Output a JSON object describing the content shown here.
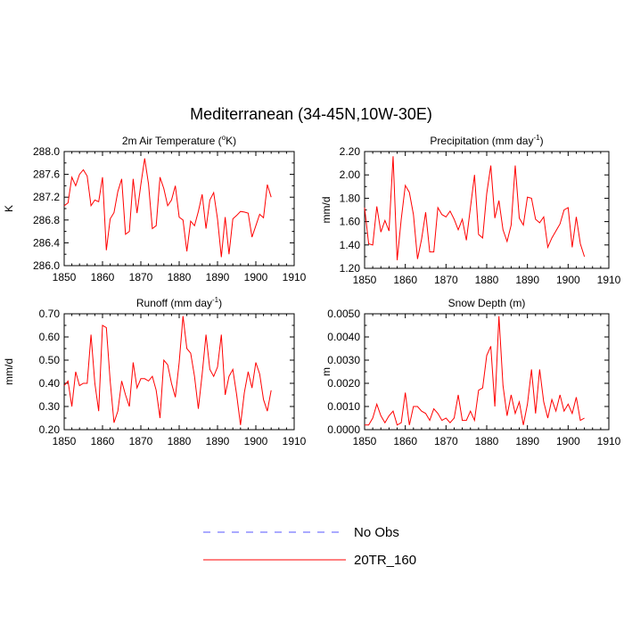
{
  "title": "Mediterranean (34-45N,10W-30E)",
  "legend": [
    {
      "label": "No Obs",
      "color": "#5555ff",
      "style": "dashed"
    },
    {
      "label": "20TR_160",
      "color": "#ff0000",
      "style": "solid"
    }
  ],
  "chart_data": [
    {
      "type": "line",
      "title_prefix": "2m Air Temperature (",
      "title_sup": "o",
      "title_suffix": "K)",
      "ylabel": "K",
      "xlim": [
        1850,
        1910
      ],
      "ylim": [
        286.0,
        288.0
      ],
      "xticks": [
        1850,
        1860,
        1870,
        1880,
        1890,
        1900,
        1910
      ],
      "yticks": [
        "286.0",
        "286.4",
        "286.8",
        "287.2",
        "287.6",
        "288.0"
      ],
      "series": [
        {
          "name": "20TR_160",
          "color": "#ff0000",
          "x": [
            1850,
            1851,
            1852,
            1853,
            1854,
            1855,
            1856,
            1857,
            1858,
            1859,
            1860,
            1861,
            1862,
            1863,
            1864,
            1865,
            1866,
            1867,
            1868,
            1869,
            1870,
            1871,
            1872,
            1873,
            1874,
            1875,
            1876,
            1877,
            1878,
            1879,
            1880,
            1881,
            1882,
            1883,
            1884,
            1885,
            1886,
            1887,
            1888,
            1889,
            1890,
            1891,
            1892,
            1893,
            1894,
            1895,
            1896,
            1897,
            1898,
            1899,
            1900,
            1901,
            1902,
            1903,
            1904
          ],
          "values": [
            287.05,
            287.1,
            287.55,
            287.4,
            287.6,
            287.68,
            287.57,
            287.05,
            287.15,
            287.12,
            287.55,
            286.27,
            286.82,
            286.93,
            287.3,
            287.52,
            286.55,
            286.6,
            287.52,
            286.92,
            287.42,
            287.88,
            287.43,
            286.65,
            286.7,
            287.55,
            287.35,
            287.05,
            287.15,
            287.4,
            286.85,
            286.8,
            286.25,
            286.78,
            286.7,
            286.95,
            287.25,
            286.65,
            287.15,
            287.28,
            286.82,
            286.15,
            286.85,
            286.2,
            286.82,
            286.88,
            286.95,
            286.94,
            286.92,
            286.5,
            286.7,
            286.9,
            286.84,
            287.42,
            287.2
          ]
        }
      ]
    },
    {
      "type": "line",
      "title_prefix": "Precipitation (mm day",
      "title_sup": "-1",
      "title_suffix": ")",
      "ylabel": "mm/d",
      "xlim": [
        1850,
        1910
      ],
      "ylim": [
        1.2,
        2.2
      ],
      "xticks": [
        1850,
        1860,
        1870,
        1880,
        1890,
        1900,
        1910
      ],
      "yticks": [
        "1.20",
        "1.40",
        "1.60",
        "1.80",
        "2.00",
        "2.20"
      ],
      "series": [
        {
          "name": "20TR_160",
          "color": "#ff0000",
          "x": [
            1850,
            1851,
            1852,
            1853,
            1854,
            1855,
            1856,
            1857,
            1858,
            1859,
            1860,
            1861,
            1862,
            1863,
            1864,
            1865,
            1866,
            1867,
            1868,
            1869,
            1870,
            1871,
            1872,
            1873,
            1874,
            1875,
            1876,
            1877,
            1878,
            1879,
            1880,
            1881,
            1882,
            1883,
            1884,
            1885,
            1886,
            1887,
            1888,
            1889,
            1890,
            1891,
            1892,
            1893,
            1894,
            1895,
            1896,
            1897,
            1898,
            1899,
            1900,
            1901,
            1902,
            1903,
            1904
          ],
          "values": [
            1.72,
            1.41,
            1.4,
            1.73,
            1.51,
            1.61,
            1.52,
            2.16,
            1.27,
            1.62,
            1.91,
            1.85,
            1.66,
            1.28,
            1.45,
            1.68,
            1.34,
            1.34,
            1.72,
            1.66,
            1.64,
            1.69,
            1.62,
            1.53,
            1.62,
            1.44,
            1.72,
            2.0,
            1.49,
            1.46,
            1.84,
            2.08,
            1.63,
            1.78,
            1.53,
            1.43,
            1.57,
            2.08,
            1.63,
            1.57,
            1.81,
            1.8,
            1.62,
            1.59,
            1.64,
            1.38,
            1.46,
            1.52,
            1.58,
            1.7,
            1.72,
            1.38,
            1.64,
            1.41,
            1.3
          ]
        }
      ]
    },
    {
      "type": "line",
      "title_prefix": "Runoff (mm day",
      "title_sup": "-1",
      "title_suffix": ")",
      "ylabel": "mm/d",
      "xlim": [
        1850,
        1910
      ],
      "ylim": [
        0.2,
        0.7
      ],
      "xticks": [
        1850,
        1860,
        1870,
        1880,
        1890,
        1900,
        1910
      ],
      "yticks": [
        "0.20",
        "0.30",
        "0.40",
        "0.50",
        "0.60",
        "0.70"
      ],
      "series": [
        {
          "name": "20TR_160",
          "color": "#ff0000",
          "x": [
            1850,
            1851,
            1852,
            1853,
            1854,
            1855,
            1856,
            1857,
            1858,
            1859,
            1860,
            1861,
            1862,
            1863,
            1864,
            1865,
            1866,
            1867,
            1868,
            1869,
            1870,
            1871,
            1872,
            1873,
            1874,
            1875,
            1876,
            1877,
            1878,
            1879,
            1880,
            1881,
            1882,
            1883,
            1884,
            1885,
            1886,
            1887,
            1888,
            1889,
            1890,
            1891,
            1892,
            1893,
            1894,
            1895,
            1896,
            1897,
            1898,
            1899,
            1900,
            1901,
            1902,
            1903,
            1904
          ],
          "values": [
            0.39,
            0.41,
            0.3,
            0.45,
            0.39,
            0.4,
            0.4,
            0.61,
            0.4,
            0.28,
            0.65,
            0.64,
            0.41,
            0.23,
            0.28,
            0.41,
            0.35,
            0.3,
            0.49,
            0.38,
            0.42,
            0.42,
            0.41,
            0.43,
            0.37,
            0.25,
            0.5,
            0.48,
            0.4,
            0.34,
            0.49,
            0.69,
            0.55,
            0.53,
            0.43,
            0.29,
            0.44,
            0.61,
            0.46,
            0.43,
            0.47,
            0.61,
            0.35,
            0.43,
            0.46,
            0.35,
            0.22,
            0.36,
            0.45,
            0.38,
            0.49,
            0.44,
            0.33,
            0.28,
            0.37
          ]
        }
      ]
    },
    {
      "type": "line",
      "title_prefix": "Snow Depth (m)",
      "title_sup": "",
      "title_suffix": "",
      "ylabel": "m",
      "xlim": [
        1850,
        1910
      ],
      "ylim": [
        0.0,
        0.005
      ],
      "xticks": [
        1850,
        1860,
        1870,
        1880,
        1890,
        1900,
        1910
      ],
      "yticks": [
        "0.0000",
        "0.0010",
        "0.0020",
        "0.0030",
        "0.0040",
        "0.0050"
      ],
      "series": [
        {
          "name": "20TR_160",
          "color": "#ff0000",
          "x": [
            1850,
            1851,
            1852,
            1853,
            1854,
            1855,
            1856,
            1857,
            1858,
            1859,
            1860,
            1861,
            1862,
            1863,
            1864,
            1865,
            1866,
            1867,
            1868,
            1869,
            1870,
            1871,
            1872,
            1873,
            1874,
            1875,
            1876,
            1877,
            1878,
            1879,
            1880,
            1881,
            1882,
            1883,
            1884,
            1885,
            1886,
            1887,
            1888,
            1889,
            1890,
            1891,
            1892,
            1893,
            1894,
            1895,
            1896,
            1897,
            1898,
            1899,
            1900,
            1901,
            1902,
            1903,
            1904
          ],
          "values": [
            0.0002,
            0.0002,
            0.0005,
            0.0011,
            0.0006,
            0.0003,
            0.0006,
            0.0008,
            0.0002,
            0.0003,
            0.0016,
            0.0002,
            0.001,
            0.001,
            0.0008,
            0.0007,
            0.0004,
            0.0009,
            0.0007,
            0.0004,
            0.0005,
            0.0003,
            0.0005,
            0.0015,
            0.0004,
            0.0004,
            0.0008,
            0.0004,
            0.0017,
            0.0018,
            0.0032,
            0.0036,
            0.001,
            0.0049,
            0.0019,
            0.0006,
            0.0015,
            0.0007,
            0.0012,
            0.0002,
            0.0011,
            0.0026,
            0.0007,
            0.0026,
            0.0012,
            0.0005,
            0.0013,
            0.0008,
            0.0015,
            0.0008,
            0.0011,
            0.0007,
            0.0014,
            0.0004,
            0.0005
          ]
        }
      ]
    }
  ]
}
